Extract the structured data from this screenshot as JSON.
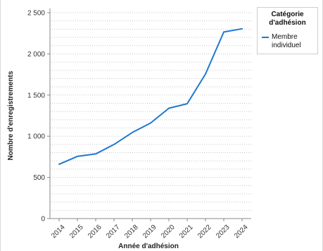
{
  "chart_data": {
    "type": "line",
    "xlabel": "Année d'adhésion",
    "ylabel": "Nombre d'enregistrements",
    "x": [
      "2014",
      "2015",
      "2016",
      "2017",
      "2018",
      "2019",
      "2020",
      "2021",
      "2022",
      "2023",
      "2024"
    ],
    "series": [
      {
        "name": "Membre individuel",
        "color": "#1f77d0",
        "values": [
          660,
          755,
          785,
          900,
          1045,
          1160,
          1340,
          1395,
          1755,
          2265,
          2305
        ]
      }
    ],
    "ylim": [
      0,
      2500
    ],
    "yticks": [
      0,
      500,
      1000,
      1500,
      2000,
      2500
    ],
    "ytick_labels": [
      "0",
      "500",
      "1 000",
      "1 500",
      "2 000",
      "2 500"
    ],
    "grid": true,
    "legend": {
      "title": "Catégorie d'adhésion",
      "position": "top-right"
    }
  }
}
